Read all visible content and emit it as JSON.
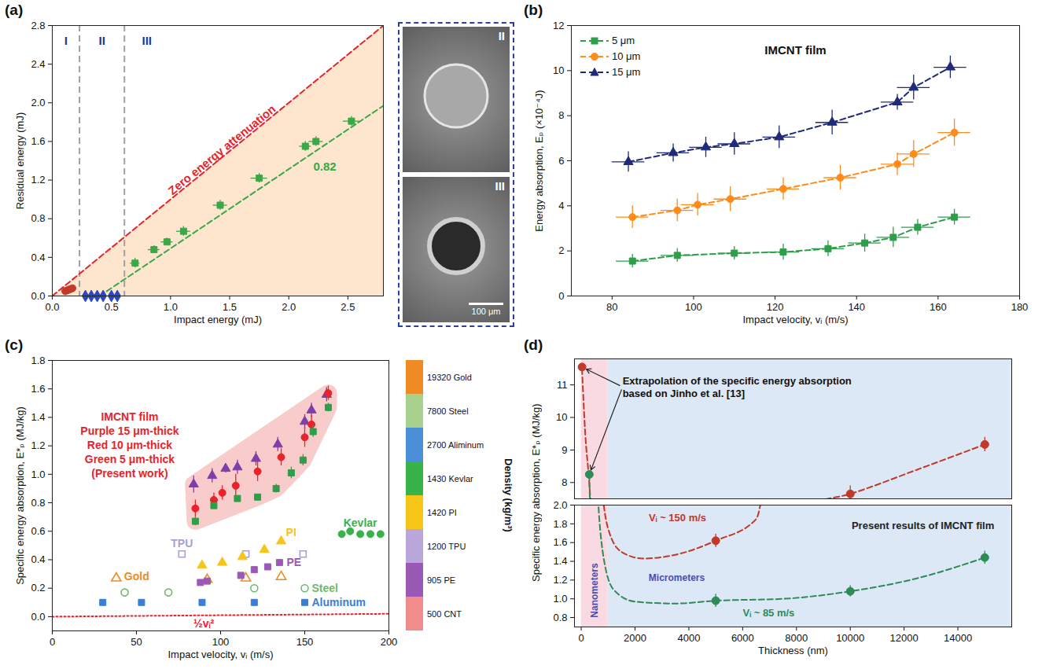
{
  "chart_data": [
    {
      "panel_label": "(a)",
      "type": "scatter",
      "x_label": "Impact energy (mJ)",
      "y_label": "Residual energy (mJ)",
      "xlim": [
        0,
        2.8
      ],
      "xticks": [
        {
          "value": 0,
          "label": "0.0"
        },
        0.5,
        {
          "value": 1,
          "label": "1.0"
        },
        1.5,
        {
          "value": 2,
          "label": "2.0"
        },
        2.5
      ],
      "ylim": [
        0,
        2.8
      ],
      "yticks": [
        {
          "value": 0,
          "label": "0.0"
        },
        0.4,
        0.8,
        1.2,
        1.6,
        {
          "value": 2,
          "label": "2.0"
        },
        2.4,
        2.8
      ],
      "series": [
        {
          "name": "Zero energy attenuation",
          "type": "line",
          "color": "#e8232a",
          "line_style": "dashed",
          "x": [
            0,
            2.8
          ],
          "y": [
            0,
            2.8
          ]
        },
        {
          "name": "0.82",
          "type": "line",
          "color": "#3aa847",
          "line_style": "dashed",
          "x": [
            0.4,
            2.8
          ],
          "y": [
            0,
            1.97
          ]
        },
        {
          "type": "scatter",
          "color": "#3aa847",
          "marker": "square",
          "x": [
            0.7,
            0.86,
            0.97,
            1.11,
            1.42,
            1.75,
            2.14,
            2.23,
            2.53
          ],
          "y": [
            0.34,
            0.48,
            0.56,
            0.67,
            0.94,
            1.22,
            1.55,
            1.6,
            1.81
          ],
          "x_error": [
            0.04,
            0.05,
            0.05,
            0.06,
            0.06,
            0.07,
            0.05,
            0.06,
            0.07
          ],
          "y_error": [
            0.05,
            0.04,
            0.04,
            0.05,
            0.05,
            0.05,
            0.05,
            0.05,
            0.05
          ]
        },
        {
          "type": "scatter",
          "color": "#c0392b",
          "marker": "circle",
          "x": [
            0.11,
            0.13,
            0.15,
            0.17
          ],
          "y": [
            0.05,
            0.06,
            0.07,
            0.08
          ]
        },
        {
          "type": "scatter",
          "color": "#2748c9",
          "marker": "diamond",
          "x": [
            0.28,
            0.33,
            0.38,
            0.43,
            0.5,
            0.55
          ],
          "y": [
            0,
            0,
            0,
            0,
            0,
            0
          ]
        }
      ],
      "regions": {
        "labels": [
          "I",
          "II",
          "III"
        ],
        "dividers": [
          0.23,
          0.61
        ]
      },
      "insets": {
        "labels": [
          "II",
          "III"
        ],
        "scale_bar": "100 μm"
      }
    },
    {
      "panel_label": "(b)",
      "type": "line",
      "title": "IMCNT film",
      "x_label": "Impact velocity, vᵢ (m/s)",
      "y_label": "Energy absorption, Eₚ (×10⁻⁴J)",
      "xlim": [
        70,
        180
      ],
      "xticks": [
        80,
        100,
        120,
        140,
        160,
        180
      ],
      "ylim": [
        0,
        12
      ],
      "yticks": [
        0,
        2,
        4,
        6,
        8,
        10,
        12
      ],
      "legend": "upper left",
      "series": [
        {
          "name": "5 μm",
          "color": "#2e9e4a",
          "marker": "square",
          "line_style": "dashed",
          "x": [
            85,
            96,
            110,
            122,
            133,
            142,
            149,
            155,
            164
          ],
          "y": [
            1.55,
            1.8,
            1.9,
            1.95,
            2.1,
            2.35,
            2.6,
            3.05,
            3.5
          ],
          "x_error": [
            4,
            4,
            4,
            4,
            4,
            4,
            4,
            4,
            4
          ],
          "y_error": [
            0.3,
            0.3,
            0.3,
            0.35,
            0.35,
            0.4,
            0.45,
            0.35,
            0.35
          ]
        },
        {
          "name": "10 μm",
          "color": "#ff8c1a",
          "marker": "circle",
          "line_style": "dashed",
          "x": [
            85,
            96,
            101,
            109,
            122,
            136,
            150,
            154,
            164
          ],
          "y": [
            3.5,
            3.8,
            4.05,
            4.3,
            4.75,
            5.25,
            5.85,
            6.3,
            7.25
          ],
          "x_error": [
            4,
            4,
            4,
            4,
            4,
            4,
            4,
            4,
            4
          ],
          "y_error": [
            0.5,
            0.5,
            0.5,
            0.55,
            0.5,
            0.55,
            0.5,
            0.6,
            0.6
          ]
        },
        {
          "name": "15 μm",
          "color": "#1f2a7a",
          "marker": "triangle",
          "line_style": "dashed",
          "x": [
            84,
            95,
            103,
            110,
            121,
            134,
            150,
            154,
            163
          ],
          "y": [
            5.95,
            6.35,
            6.6,
            6.75,
            7.05,
            7.7,
            8.6,
            9.25,
            10.15
          ],
          "x_error": [
            4,
            4,
            4,
            4,
            4,
            4,
            4,
            4,
            4
          ],
          "y_error": [
            0.45,
            0.4,
            0.45,
            0.5,
            0.5,
            0.55,
            0.35,
            0.55,
            0.5
          ]
        }
      ]
    },
    {
      "panel_label": "(c)",
      "type": "scatter",
      "x_label": "Impact velocity, vᵢ (m/s)",
      "y_label": "Specific energy absorption, E*ₚ (MJ/kg)",
      "xlim": [
        0,
        200
      ],
      "xticks": [
        0,
        50,
        100,
        150,
        200
      ],
      "ylim": [
        -0.1,
        1.8
      ],
      "yticks": [
        {
          "value": 0,
          "label": "0.0"
        },
        0.2,
        0.4,
        0.6,
        0.8,
        {
          "value": 1,
          "label": "1.0"
        },
        1.2,
        1.4,
        1.6,
        1.8
      ],
      "annotation": [
        "IMCNT film",
        "Purple 15 μm-thick",
        "Red 10 μm-thick",
        "Green 5 μm-thick",
        "(Present work)"
      ],
      "series": [
        {
          "color": "#7e3fa8",
          "marker": "triangle",
          "x": [
            84,
            95,
            103,
            110,
            121,
            134,
            150,
            154,
            163
          ],
          "y": [
            0.93,
            0.99,
            1.04,
            1.05,
            1.11,
            1.21,
            1.37,
            1.45,
            1.56
          ],
          "y_error": [
            0.06,
            0.05,
            0.03,
            0.05,
            0.05,
            0.05,
            0.05,
            0.05,
            0.05
          ]
        },
        {
          "color": "#e8232a",
          "marker": "circle",
          "x": [
            85,
            96,
            101,
            109,
            122,
            136,
            150,
            154,
            164
          ],
          "y": [
            0.76,
            0.82,
            0.87,
            0.92,
            1.02,
            1.12,
            1.26,
            1.35,
            1.57
          ],
          "y_error": [
            0.06,
            0.05,
            0.05,
            0.08,
            0.07,
            0.06,
            0.07,
            0.06,
            0.05
          ]
        },
        {
          "color": "#2e9e4a",
          "marker": "square",
          "x": [
            85,
            96,
            110,
            122,
            133,
            142,
            149,
            155,
            164
          ],
          "y": [
            0.67,
            0.78,
            0.83,
            0.84,
            0.9,
            1.01,
            1.1,
            1.3,
            1.47
          ],
          "y_error": [
            0.03,
            0.02,
            0.02,
            0.02,
            0.03,
            0.04,
            0.04,
            0.04,
            0.03
          ]
        },
        {
          "name": "Gold",
          "color": "#f08a24",
          "marker": "open triangle",
          "x": [
            38,
            92,
            115,
            136
          ],
          "y": [
            0.27,
            0.26,
            0.27,
            0.28
          ]
        },
        {
          "name": "Steel",
          "color": "#6fb86d",
          "marker": "open circle",
          "x": [
            43,
            69,
            120,
            150
          ],
          "y": [
            0.17,
            0.17,
            0.2,
            0.2
          ]
        },
        {
          "name": "Aluminum",
          "color": "#3a7fd5",
          "marker": "square",
          "x": [
            30,
            53,
            89,
            120,
            150
          ],
          "y": [
            0.1,
            0.1,
            0.1,
            0.1,
            0.1
          ]
        },
        {
          "name": "TPU",
          "color": "#a99fd8",
          "marker": "open square",
          "x": [
            77,
            115,
            149
          ],
          "y": [
            0.44,
            0.44,
            0.44
          ]
        },
        {
          "name": "PI",
          "color": "#f5c518",
          "marker": "triangle",
          "x": [
            89,
            101,
            113,
            126,
            136
          ],
          "y": [
            0.36,
            0.38,
            0.42,
            0.47,
            0.53
          ]
        },
        {
          "name": "PE",
          "color": "#9b59b6",
          "marker": "square",
          "x": [
            88,
            92,
            112,
            120,
            128,
            135
          ],
          "y": [
            0.24,
            0.25,
            0.29,
            0.33,
            0.35,
            0.38
          ]
        },
        {
          "name": "Kevlar",
          "color": "#37b34a",
          "marker": "circle",
          "x": [
            172,
            177,
            183,
            189,
            195
          ],
          "y": [
            0.58,
            0.6,
            0.58,
            0.58,
            0.58
          ]
        },
        {
          "name": "½vᵢ²",
          "type": "line",
          "color": "#e8232a",
          "line_style": "dotted",
          "x": [
            0,
            200
          ],
          "y": [
            0,
            0.02
          ]
        }
      ],
      "color_bar": {
        "title": "Density (kg/m³)",
        "labels": [
          "19320 Gold",
          "7800 Steel",
          "2700 Aliminum",
          "1430 Kevlar",
          "1420 PI",
          "1200 TPU",
          "905 PE",
          "500 CNT"
        ],
        "colors": [
          "#f08a24",
          "#a9d18e",
          "#4a90d9",
          "#37b34a",
          "#f5c518",
          "#b9a7dc",
          "#9b59b6",
          "#f28b8b"
        ]
      }
    },
    {
      "panel_label": "(d)",
      "type": "scatter",
      "x_label": "Thickness (nm)",
      "y_label": "Specific energy absorption, E*ₚ (MJ/kg)",
      "xlim": [
        -250,
        16000
      ],
      "xticks": [
        0,
        2000,
        4000,
        6000,
        8000,
        10000,
        12000,
        14000
      ],
      "segments": [
        {
          "ylim": [
            7.5,
            11.8
          ],
          "yticks": [
            8,
            9,
            10,
            11
          ]
        },
        {
          "ylim": [
            0.7,
            2.0
          ],
          "yticks": [
            0.8,
            {
              "value": 1,
              "label": "1.0"
            },
            1.2,
            1.4,
            1.6,
            1.8,
            {
              "value": 2,
              "label": "2.0"
            }
          ]
        }
      ],
      "regions": [
        {
          "label": "Nanometers",
          "range": [
            0,
            1000
          ],
          "color": "#f9d9e2"
        },
        {
          "label": "Micrometers",
          "range": [
            1000,
            16000
          ],
          "color": "#dce8f6"
        }
      ],
      "annotations": [
        "Present results of IMCNT film"
      ],
      "series": [
        {
          "name": "Vᵢ ~ 150 m/s",
          "color": "#c0392b",
          "marker": "circle",
          "x": [
            5000,
            10000,
            15000
          ],
          "y": [
            1.62,
            7.65,
            9.17
          ],
          "y_error": [
            0.07,
            0.25,
            0.22
          ]
        },
        {
          "name": "Vᵢ ~ 85 m/s",
          "color": "#2e8b57",
          "marker": "circle",
          "x": [
            5000,
            10000,
            15000
          ],
          "y": [
            0.98,
            1.08,
            1.44
          ],
          "y_error": [
            0.07,
            0.06,
            0.07
          ]
        },
        {
          "type": "line",
          "color": "#c0392b",
          "line_style": "dashed",
          "x": [
            30,
            150,
            300,
            500,
            700,
            1000,
            1500,
            2300,
            3500,
            5000,
            6500,
            7500,
            8500,
            10000,
            12500,
            15000
          ],
          "y": [
            11.5,
            9.5,
            8.0,
            5.0,
            2.5,
            1.75,
            1.5,
            1.43,
            1.47,
            1.62,
            1.85,
            4.5,
            7.3,
            7.65,
            8.4,
            9.17
          ]
        },
        {
          "type": "line",
          "color": "#2e8b57",
          "line_style": "dashed",
          "x": [
            300,
            500,
            800,
            1200,
            2000,
            3500,
            5000,
            7500,
            10000,
            12500,
            15000
          ],
          "y": [
            8.25,
            3.0,
            1.5,
            1.1,
            0.97,
            0.95,
            0.98,
            1.0,
            1.08,
            1.22,
            1.44
          ]
        },
        {
          "name": "Extrapolation of the specific energy absorption based on Jinho et al. [13]",
          "type": "scatter",
          "marker": "circle",
          "colors": [
            "#c0392b",
            "#2e8b57"
          ],
          "x": [
            30,
            300
          ],
          "y": [
            11.55,
            8.25
          ]
        }
      ]
    }
  ]
}
